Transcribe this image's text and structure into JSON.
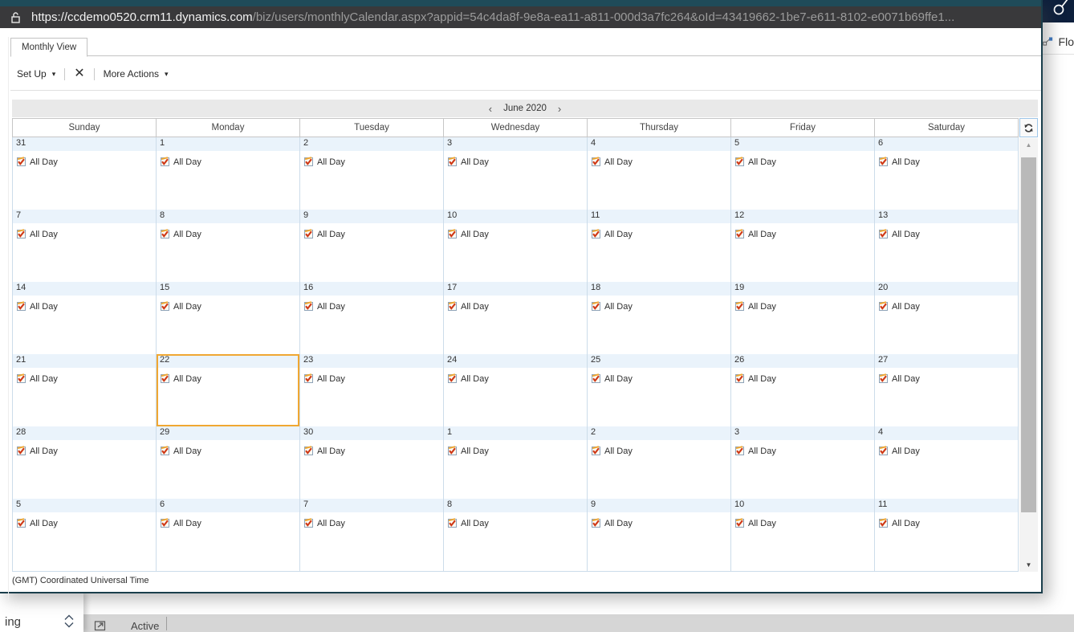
{
  "browser": {
    "url_host": "https://ccdemo0520.crm11.dynamics.com",
    "url_path": "/biz/users/monthlyCalendar.aspx?appid=54c4da8f-9e8a-ea11-a811-000d3a7fc264&oId=43419662-1be7-e611-8102-e0071b69ffe1...",
    "lock_icon": "lock"
  },
  "popup": {
    "tab_label": "Monthly View",
    "toolbar": {
      "set_up": "Set Up",
      "close_icon": "✕",
      "more_actions": "More Actions"
    },
    "footer_timezone": "(GMT) Coordinated Universal Time"
  },
  "calendar": {
    "month_label": "June 2020",
    "prev_icon": "‹",
    "next_icon": "›",
    "day_headers": [
      "Sunday",
      "Monday",
      "Tuesday",
      "Wednesday",
      "Thursday",
      "Friday",
      "Saturday"
    ],
    "entry_label": "All Day",
    "entry_icon": "activity-clipboard",
    "weeks": [
      [
        31,
        1,
        2,
        3,
        4,
        5,
        6
      ],
      [
        7,
        8,
        9,
        10,
        11,
        12,
        13
      ],
      [
        14,
        15,
        16,
        17,
        18,
        19,
        20
      ],
      [
        21,
        22,
        23,
        24,
        25,
        26,
        27
      ],
      [
        28,
        29,
        30,
        1,
        2,
        3,
        4
      ],
      [
        5,
        6,
        7,
        8,
        9,
        10,
        11
      ]
    ],
    "today": {
      "week_index": 3,
      "day_index": 1,
      "date": 22
    },
    "refresh_icon": "refresh",
    "colors": {
      "today_border": "#f0a732",
      "cell_border": "#ccdcea",
      "day_strip_bg": "#eaf3fb",
      "titlebar_teal": "#1f4b59",
      "addressbar_dark": "#39393b",
      "nav_navy": "#0d1f3c"
    }
  },
  "background_page": {
    "search_icon": "magnifier",
    "flow_button_label": "Flo",
    "record_label_partial": "ing",
    "status_label": "Active"
  }
}
